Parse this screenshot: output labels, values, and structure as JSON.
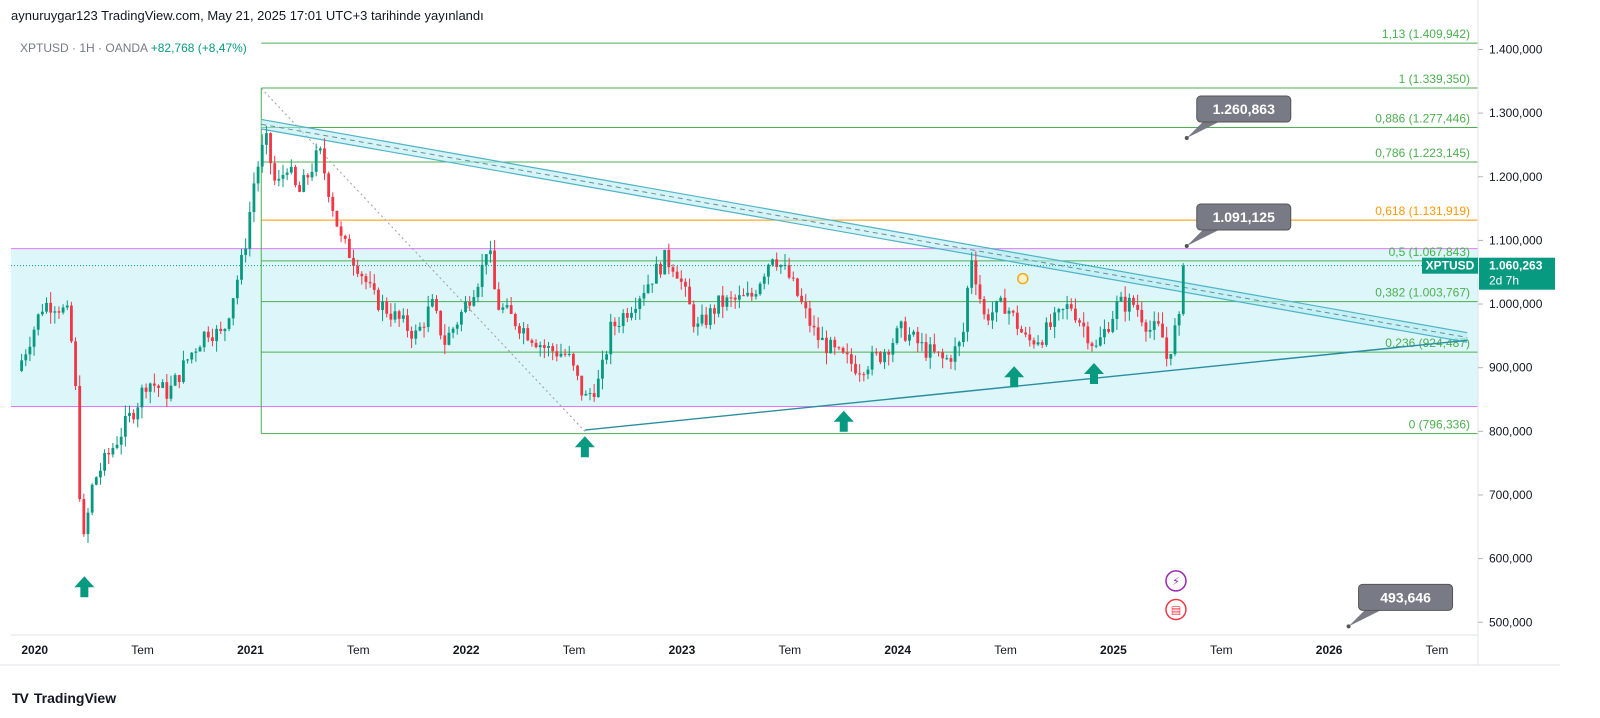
{
  "header": {
    "published_text": "aynuruygar123 TradingView.com, May 21, 2025 17:01 UTC+3 tarihinde yayınlandı"
  },
  "symbol_info": {
    "symbol": "XPTUSD",
    "interval": "1H",
    "broker": "OANDA",
    "change_text": "+82,768 (+8,47%)"
  },
  "footer": {
    "brand": "TradingView"
  },
  "colors": {
    "up": "#089981",
    "down": "#f23645",
    "fib_line": "#4caf50",
    "fib_text": "#4caf50",
    "fib_618": "#ff9800",
    "band_fill": "#b2ebf2",
    "band_edge": "#e040fb",
    "channel": "#4fb3c7",
    "support": "#2a8ea0",
    "price_tag": "#089981",
    "callout": "#787b86",
    "arrow": "#089981"
  },
  "chart_data": {
    "type": "candlestick",
    "title": "",
    "xlabel": "",
    "ylabel": "",
    "symbol": "XPTUSD",
    "ylim": [
      480,
      1440
    ],
    "xlim": [
      2019.97,
      2026.77
    ],
    "y_ticks": [
      500,
      600,
      700,
      800,
      900,
      1000,
      1100,
      1200,
      1300,
      1400
    ],
    "y_tick_labels": [
      "500,000",
      "600,000",
      "700,000",
      "800,000",
      "900,000",
      "1.000,000",
      "1.100,000",
      "1.200,000",
      "1.300,000",
      "1.400,000"
    ],
    "x_ticks": [
      {
        "t": 2020.08,
        "label": "2020"
      },
      {
        "t": 2020.58,
        "label": "Tem"
      },
      {
        "t": 2021.08,
        "label": "2021"
      },
      {
        "t": 2021.58,
        "label": "Tem"
      },
      {
        "t": 2022.08,
        "label": "2022"
      },
      {
        "t": 2022.58,
        "label": "Tem"
      },
      {
        "t": 2023.08,
        "label": "2023"
      },
      {
        "t": 2023.58,
        "label": "Tem"
      },
      {
        "t": 2024.08,
        "label": "2024"
      },
      {
        "t": 2024.58,
        "label": "Tem"
      },
      {
        "t": 2025.08,
        "label": "2025"
      },
      {
        "t": 2025.58,
        "label": "Tem"
      },
      {
        "t": 2026.08,
        "label": "2026"
      },
      {
        "t": 2026.58,
        "label": "Tem"
      }
    ],
    "price_path": [
      [
        2020.0,
        895
      ],
      [
        2020.12,
        1000
      ],
      [
        2020.18,
        1000
      ],
      [
        2020.24,
        980
      ],
      [
        2020.27,
        860
      ],
      [
        2020.3,
        610
      ],
      [
        2020.35,
        720
      ],
      [
        2020.45,
        780
      ],
      [
        2020.55,
        840
      ],
      [
        2020.6,
        880
      ],
      [
        2020.7,
        860
      ],
      [
        2020.8,
        920
      ],
      [
        2020.88,
        960
      ],
      [
        2020.95,
        950
      ],
      [
        2021.05,
        1080
      ],
      [
        2021.1,
        1200
      ],
      [
        2021.15,
        1260
      ],
      [
        2021.2,
        1180
      ],
      [
        2021.25,
        1220
      ],
      [
        2021.3,
        1170
      ],
      [
        2021.4,
        1240
      ],
      [
        2021.5,
        1100
      ],
      [
        2021.58,
        1060
      ],
      [
        2021.65,
        1010
      ],
      [
        2021.75,
        980
      ],
      [
        2021.85,
        950
      ],
      [
        2021.92,
        1000
      ],
      [
        2021.98,
        940
      ],
      [
        2022.05,
        980
      ],
      [
        2022.15,
        1050
      ],
      [
        2022.18,
        1100
      ],
      [
        2022.22,
        1000
      ],
      [
        2022.35,
        960
      ],
      [
        2022.45,
        930
      ],
      [
        2022.55,
        920
      ],
      [
        2022.63,
        850
      ],
      [
        2022.7,
        880
      ],
      [
        2022.75,
        960
      ],
      [
        2022.85,
        1000
      ],
      [
        2023.0,
        1070
      ],
      [
        2023.05,
        1060
      ],
      [
        2023.15,
        960
      ],
      [
        2023.25,
        1000
      ],
      [
        2023.4,
        1010
      ],
      [
        2023.5,
        1080
      ],
      [
        2023.58,
        1040
      ],
      [
        2023.7,
        950
      ],
      [
        2023.8,
        920
      ],
      [
        2023.9,
        900
      ],
      [
        2024.0,
        920
      ],
      [
        2024.1,
        960
      ],
      [
        2024.2,
        930
      ],
      [
        2024.3,
        910
      ],
      [
        2024.38,
        940
      ],
      [
        2024.42,
        1080
      ],
      [
        2024.48,
        980
      ],
      [
        2024.58,
        1000
      ],
      [
        2024.68,
        940
      ],
      [
        2024.75,
        950
      ],
      [
        2024.88,
        1000
      ],
      [
        2024.95,
        960
      ],
      [
        2025.0,
        930
      ],
      [
        2025.1,
        1000
      ],
      [
        2025.18,
        1000
      ],
      [
        2025.25,
        960
      ],
      [
        2025.3,
        960
      ],
      [
        2025.33,
        910
      ],
      [
        2025.36,
        955
      ],
      [
        2025.4,
        980
      ],
      [
        2025.42,
        1060
      ]
    ],
    "fib_levels": [
      {
        "ratio": "0",
        "value": 796.336,
        "label": "0 (796,336)"
      },
      {
        "ratio": "0.236",
        "value": 924.487,
        "label": "0,236 (924,487)"
      },
      {
        "ratio": "0.382",
        "value": 1003.767,
        "label": "0,382 (1.003,767)"
      },
      {
        "ratio": "0.5",
        "value": 1067.843,
        "label": "0,5 (1.067,843)"
      },
      {
        "ratio": "0.618",
        "value": 1131.919,
        "label": "0,618 (1.131,919)"
      },
      {
        "ratio": "0.786",
        "value": 1223.145,
        "label": "0,786 (1.223,145)"
      },
      {
        "ratio": "0.886",
        "value": 1277.446,
        "label": "0,886 (1.277,446)"
      },
      {
        "ratio": "1",
        "value": 1339.35,
        "label": "1 (1.339,350)"
      },
      {
        "ratio": "1.13",
        "value": 1409.942,
        "label": "1,13 (1.409,942)"
      }
    ],
    "fib_start_t": 2021.13,
    "band": {
      "low": 839,
      "high": 1087
    },
    "channel_upper": {
      "start": [
        2021.13,
        1290
      ],
      "end": [
        2026.72,
        955
      ]
    },
    "channel_lower": {
      "start": [
        2021.13,
        1275
      ],
      "end": [
        2026.72,
        940
      ]
    },
    "support_line": {
      "start": [
        2022.63,
        802
      ],
      "end": [
        2026.72,
        943
      ]
    },
    "diagonal_guide": {
      "start": [
        2021.13,
        1339
      ],
      "end": [
        2022.63,
        800
      ]
    },
    "current_price_line": 1060.263,
    "price_tag": {
      "symbol": "XPTUSD",
      "value_label": "1.060,263",
      "countdown": "2d 7h",
      "value": 1060.263
    },
    "callouts": [
      {
        "label": "1.260,863",
        "anchor": [
          2025.42,
          1260.863
        ]
      },
      {
        "label": "1.091,125",
        "anchor": [
          2025.42,
          1091.125
        ]
      },
      {
        "label": "493,646",
        "anchor": [
          2026.17,
          493.646
        ]
      }
    ],
    "arrows": [
      {
        "t": 2020.31,
        "value": 555
      },
      {
        "t": 2022.63,
        "value": 775
      },
      {
        "t": 2023.83,
        "value": 815
      },
      {
        "t": 2024.62,
        "value": 885
      },
      {
        "t": 2024.99,
        "value": 890
      }
    ],
    "marker_circle": {
      "t": 2024.66,
      "value": 1040
    },
    "event_icons": [
      {
        "name": "flash",
        "t": 2025.37,
        "value": 565,
        "glyph": "⚡"
      },
      {
        "name": "us-flag",
        "t": 2025.37,
        "value": 520,
        "glyph": "▤"
      }
    ]
  }
}
